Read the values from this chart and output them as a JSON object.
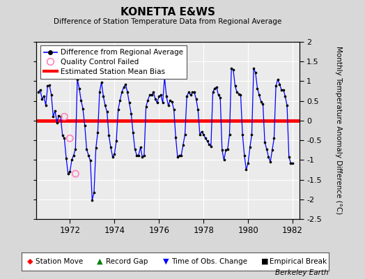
{
  "title": "KONETTA E&WS",
  "subtitle": "Difference of Station Temperature Data from Regional Average",
  "ylabel": "Monthly Temperature Anomaly Difference (°C)",
  "xlabel_years": [
    1972,
    1974,
    1976,
    1978,
    1980,
    1982
  ],
  "xlim": [
    1970.5,
    1982.3
  ],
  "ylim": [
    -2.5,
    2.0
  ],
  "yticks": [
    -2.5,
    -2.0,
    -1.5,
    -1.0,
    -0.5,
    0.0,
    0.5,
    1.0,
    1.5,
    2.0
  ],
  "ytick_labels": [
    "-2.5",
    "-2",
    "-1.5",
    "-1",
    "-0.5",
    "0",
    "0.5",
    "1",
    "1.5",
    "2"
  ],
  "bias_value": 0.0,
  "line_color": "#0000ff",
  "marker_color": "#000000",
  "bias_color": "#ff0000",
  "background_color": "#d8d8d8",
  "plot_bg_color": "#ebebeb",
  "grid_color": "#ffffff",
  "berkeley_earth_label": "Berkeley Earth",
  "qc_failed_times": [
    1971.75,
    1972.0,
    1972.25
  ],
  "qc_failed_values": [
    0.1,
    -0.45,
    -1.35
  ],
  "data_x": [
    1970.583,
    1970.667,
    1970.75,
    1970.833,
    1970.917,
    1971.0,
    1971.083,
    1971.167,
    1971.25,
    1971.333,
    1971.417,
    1971.5,
    1971.583,
    1971.667,
    1971.75,
    1971.833,
    1971.917,
    1972.0,
    1972.083,
    1972.167,
    1972.25,
    1972.333,
    1972.417,
    1972.5,
    1972.583,
    1972.667,
    1972.75,
    1972.833,
    1972.917,
    1973.0,
    1973.083,
    1973.167,
    1973.25,
    1973.333,
    1973.417,
    1973.5,
    1973.583,
    1973.667,
    1973.75,
    1973.833,
    1973.917,
    1974.0,
    1974.083,
    1974.167,
    1974.25,
    1974.333,
    1974.417,
    1974.5,
    1974.583,
    1974.667,
    1974.75,
    1974.833,
    1974.917,
    1975.0,
    1975.083,
    1975.167,
    1975.25,
    1975.333,
    1975.417,
    1975.5,
    1975.583,
    1975.667,
    1975.75,
    1975.833,
    1975.917,
    1976.0,
    1976.083,
    1976.167,
    1976.25,
    1976.333,
    1976.417,
    1976.5,
    1976.583,
    1976.667,
    1976.75,
    1976.833,
    1976.917,
    1977.0,
    1977.083,
    1977.167,
    1977.25,
    1977.333,
    1977.417,
    1977.5,
    1977.583,
    1977.667,
    1977.75,
    1977.833,
    1977.917,
    1978.0,
    1978.083,
    1978.167,
    1978.25,
    1978.333,
    1978.417,
    1978.5,
    1978.583,
    1978.667,
    1978.75,
    1978.833,
    1978.917,
    1979.0,
    1979.083,
    1979.167,
    1979.25,
    1979.333,
    1979.417,
    1979.5,
    1979.583,
    1979.667,
    1979.75,
    1979.833,
    1979.917,
    1980.0,
    1980.083,
    1980.167,
    1980.25,
    1980.333,
    1980.417,
    1980.5,
    1980.583,
    1980.667,
    1980.75,
    1980.833,
    1980.917,
    1981.0,
    1981.083,
    1981.167,
    1981.25,
    1981.333,
    1981.417,
    1981.5,
    1981.583,
    1981.667,
    1981.75,
    1981.833,
    1981.917,
    1982.0
  ],
  "data_y": [
    0.72,
    0.78,
    0.55,
    0.62,
    0.38,
    0.88,
    0.9,
    0.65,
    0.1,
    0.25,
    -0.05,
    0.12,
    0.1,
    -0.38,
    -0.45,
    -0.95,
    -1.35,
    -1.3,
    -1.0,
    -0.88,
    -0.72,
    1.05,
    0.82,
    0.52,
    0.3,
    -0.12,
    -0.72,
    -0.88,
    -1.02,
    -2.02,
    -1.82,
    -0.7,
    -0.3,
    0.72,
    0.98,
    0.62,
    0.38,
    0.22,
    -0.38,
    -0.68,
    -0.92,
    -0.85,
    -0.52,
    0.28,
    0.52,
    0.72,
    0.85,
    0.92,
    0.72,
    0.45,
    0.18,
    -0.3,
    -0.72,
    -0.88,
    -0.88,
    -0.68,
    -0.92,
    -0.88,
    0.35,
    0.52,
    0.65,
    0.65,
    0.72,
    0.55,
    0.45,
    0.62,
    0.65,
    0.45,
    1.1,
    0.62,
    0.38,
    0.52,
    0.48,
    0.28,
    -0.42,
    -0.92,
    -0.88,
    -0.88,
    -0.62,
    -0.35,
    0.62,
    0.72,
    0.65,
    0.72,
    0.72,
    0.55,
    0.28,
    -0.35,
    -0.28,
    -0.35,
    -0.45,
    -0.52,
    -0.6,
    -0.65,
    0.72,
    0.82,
    0.85,
    0.65,
    0.58,
    -0.75,
    -1.0,
    -0.75,
    -0.72,
    -0.35,
    1.32,
    1.3,
    0.88,
    0.72,
    0.68,
    0.65,
    -0.35,
    -0.88,
    -1.25,
    -1.08,
    -0.68,
    -0.35,
    1.32,
    1.22,
    0.82,
    0.65,
    0.48,
    0.42,
    -0.55,
    -0.72,
    -0.92,
    -1.05,
    -0.75,
    -0.45,
    0.88,
    1.05,
    0.92,
    0.78,
    0.78,
    0.62,
    0.38,
    -0.92,
    -1.08,
    -1.08
  ]
}
